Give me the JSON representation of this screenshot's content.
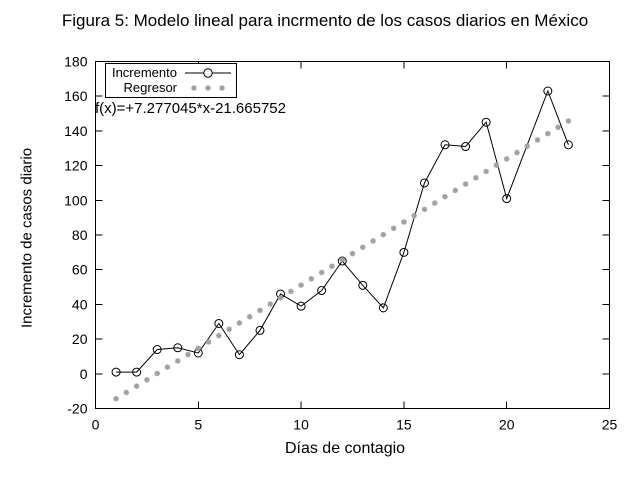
{
  "figure": {
    "title": "Figura 5: Modelo lineal para incrmento de los casos diarios en México",
    "xlabel": "Días de contagio",
    "ylabel": "Incremento de casos diario",
    "annotation": "f(x)=+7.277045*x-21.665752"
  },
  "legend": {
    "items": [
      {
        "label": "Incremento",
        "marker": "open-circle-on-line"
      },
      {
        "label": "Regresor",
        "marker": "gray-asterisks"
      }
    ]
  },
  "colors": {
    "foreground": "#000000",
    "regressor_gray": "#a0a0a0",
    "background": "#ffffff"
  },
  "chart_data": {
    "type": "line",
    "title": "Figura 5: Modelo lineal para incrmento de los casos diarios en México",
    "xlabel": "Días de contagio",
    "ylabel": "Incremento de casos diario",
    "xlim": [
      0,
      25
    ],
    "ylim": [
      -20,
      180
    ],
    "x_ticks": [
      0,
      5,
      10,
      15,
      20,
      25
    ],
    "y_ticks": [
      -20,
      0,
      20,
      40,
      60,
      80,
      100,
      120,
      140,
      160,
      180
    ],
    "grid": false,
    "legend_position": "top-left",
    "annotation": "f(x)=+7.277045*x-21.665752",
    "series": [
      {
        "name": "Incremento",
        "type": "line+markers",
        "marker": "open-circle",
        "color": "#000000",
        "x": [
          1,
          2,
          3,
          4,
          5,
          6,
          7,
          8,
          9,
          10,
          11,
          12,
          13,
          14,
          15,
          16,
          17,
          18,
          19,
          20,
          22,
          23
        ],
        "y": [
          1,
          1,
          14,
          15,
          12,
          29,
          11,
          25,
          46,
          39,
          48,
          65,
          51,
          38,
          70,
          110,
          132,
          131,
          145,
          101,
          163,
          132
        ]
      },
      {
        "name": "Regresor",
        "type": "points",
        "marker": "asterisk",
        "color": "#a0a0a0",
        "fit": "linear",
        "slope": 7.277045,
        "intercept": -21.665752,
        "x_start": 1,
        "x_end": 23,
        "x_step": 0.5
      }
    ]
  }
}
